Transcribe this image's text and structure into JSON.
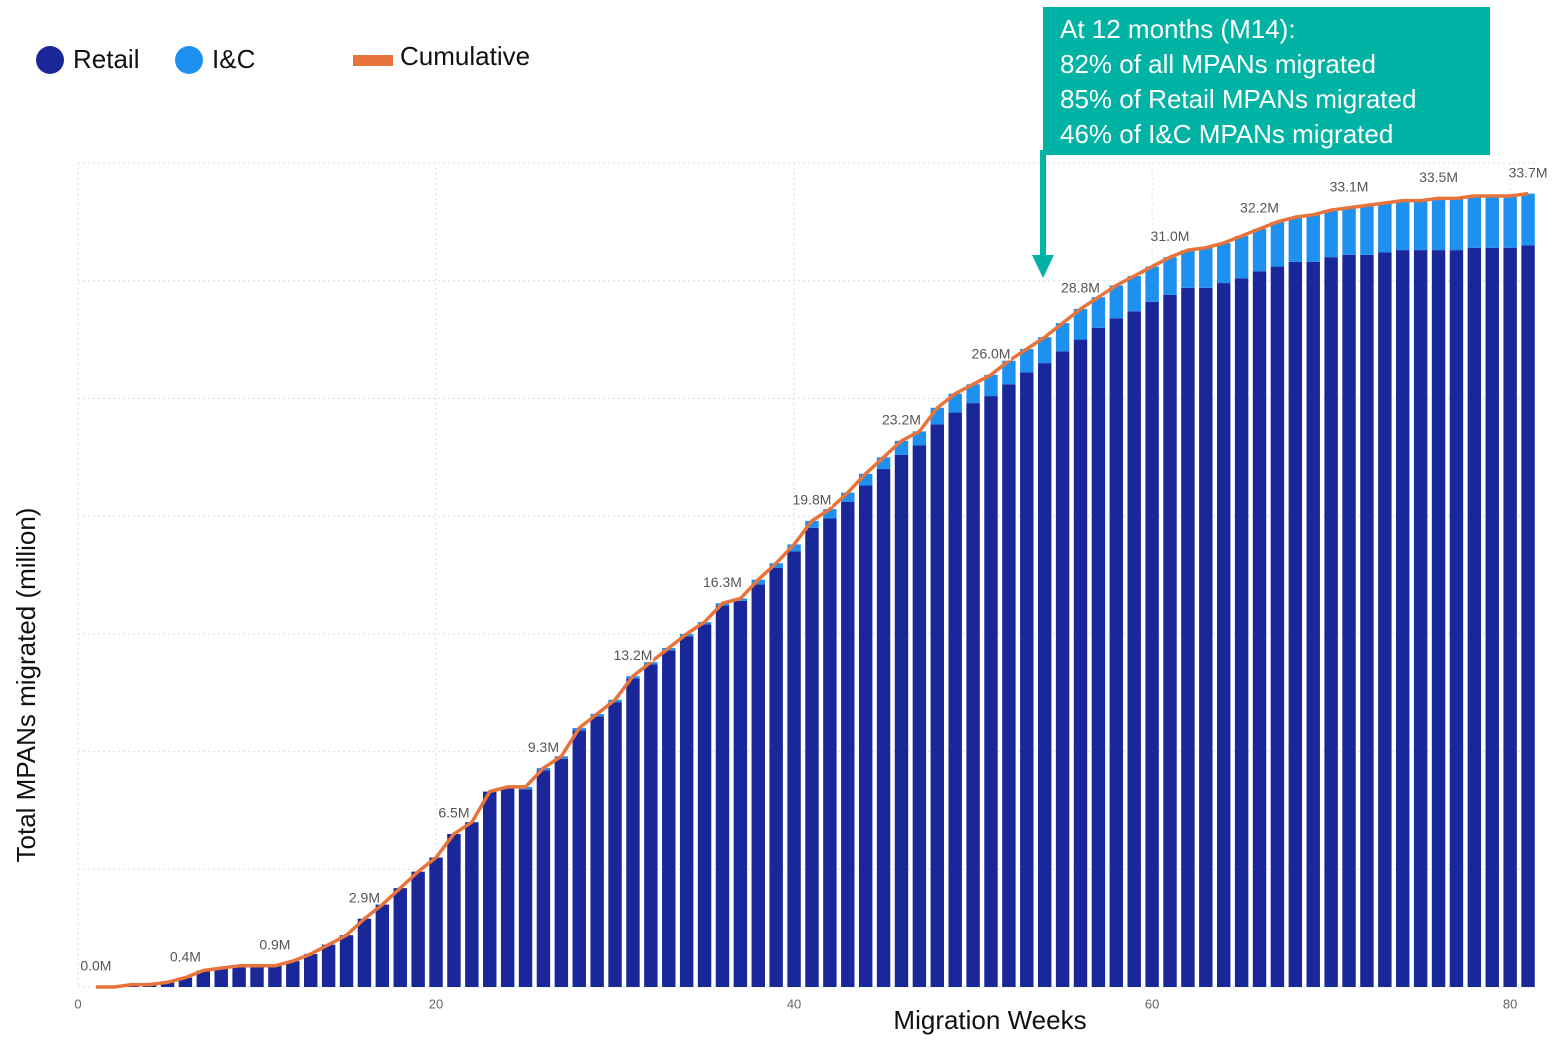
{
  "chart_data": {
    "type": "bar+line",
    "x_label": "Migration Weeks",
    "y_label": "Total MPANs migrated (million)",
    "annotation": [
      "At 12 months (M14):",
      "82% of all MPANs migrated",
      "85% of Retail MPANs migrated",
      "46% of I&C MPANs migrated"
    ],
    "annotation_color": "#00b3a4",
    "x": [
      1,
      2,
      3,
      4,
      5,
      6,
      7,
      8,
      9,
      10,
      11,
      12,
      13,
      14,
      15,
      16,
      17,
      18,
      19,
      20,
      21,
      22,
      23,
      24,
      25,
      26,
      27,
      28,
      29,
      30,
      31,
      32,
      33,
      34,
      35,
      36,
      37,
      38,
      39,
      40,
      41,
      42,
      43,
      44,
      45,
      46,
      47,
      48,
      49,
      50,
      51,
      52,
      53,
      54,
      55,
      56,
      57,
      58,
      59,
      60,
      61,
      62,
      63,
      64,
      65,
      66,
      67,
      68,
      69,
      70,
      71,
      72,
      73,
      74,
      75,
      76,
      77,
      78,
      79,
      80,
      81
    ],
    "series": [
      {
        "name": "Retail",
        "color": "#1a2799",
        "values": [
          0.0,
          0.0,
          0.1,
          0.1,
          0.2,
          0.4,
          0.7,
          0.8,
          0.9,
          0.9,
          0.9,
          1.1,
          1.4,
          1.8,
          2.2,
          2.9,
          3.5,
          4.2,
          4.9,
          5.5,
          6.5,
          7.0,
          8.3,
          8.5,
          8.4,
          9.2,
          9.7,
          10.9,
          11.5,
          12.1,
          13.1,
          13.7,
          14.3,
          14.9,
          15.4,
          16.2,
          16.4,
          17.1,
          17.8,
          18.5,
          19.5,
          19.9,
          20.6,
          21.3,
          22.0,
          22.6,
          23.0,
          23.9,
          24.4,
          24.8,
          25.1,
          25.6,
          26.1,
          26.5,
          27.0,
          27.5,
          28.0,
          28.4,
          28.7,
          29.1,
          29.4,
          29.7,
          29.7,
          29.9,
          30.1,
          30.4,
          30.6,
          30.8,
          30.8,
          31.0,
          31.1,
          31.1,
          31.2,
          31.3,
          31.3,
          31.3,
          31.3,
          31.4,
          31.4,
          31.4,
          31.5
        ]
      },
      {
        "name": "I&C",
        "color": "#1e90f0",
        "values": [
          0,
          0,
          0,
          0,
          0,
          0,
          0,
          0,
          0,
          0,
          0,
          0,
          0,
          0,
          0,
          0,
          0,
          0,
          0,
          0,
          0,
          0,
          0,
          0,
          0.1,
          0.1,
          0.1,
          0.1,
          0.1,
          0.1,
          0.1,
          0.1,
          0.1,
          0.1,
          0.1,
          0.1,
          0.1,
          0.2,
          0.2,
          0.3,
          0.3,
          0.4,
          0.4,
          0.5,
          0.5,
          0.6,
          0.6,
          0.7,
          0.8,
          0.8,
          0.9,
          1.0,
          1.0,
          1.1,
          1.2,
          1.3,
          1.3,
          1.4,
          1.5,
          1.5,
          1.6,
          1.6,
          1.7,
          1.7,
          1.8,
          1.8,
          1.9,
          1.9,
          2.0,
          2.0,
          2.0,
          2.1,
          2.1,
          2.1,
          2.1,
          2.2,
          2.2,
          2.2,
          2.2,
          2.2,
          2.2
        ]
      },
      {
        "name": "Cumulative",
        "color": "#e8743b",
        "values": [
          0.0,
          0.0,
          0.1,
          0.1,
          0.2,
          0.4,
          0.7,
          0.8,
          0.9,
          0.9,
          0.9,
          1.1,
          1.4,
          1.8,
          2.2,
          2.9,
          3.5,
          4.2,
          4.9,
          5.5,
          6.5,
          7.0,
          8.3,
          8.5,
          8.5,
          9.3,
          9.8,
          11.0,
          11.6,
          12.2,
          13.2,
          13.8,
          14.4,
          15.0,
          15.5,
          16.3,
          16.5,
          17.3,
          18.0,
          18.8,
          19.8,
          20.3,
          21.0,
          21.8,
          22.5,
          23.2,
          23.6,
          24.6,
          25.2,
          25.6,
          26.0,
          26.6,
          27.1,
          27.6,
          28.2,
          28.8,
          29.3,
          29.8,
          30.2,
          30.6,
          31.0,
          31.3,
          31.4,
          31.6,
          31.9,
          32.2,
          32.5,
          32.7,
          32.8,
          33.0,
          33.1,
          33.2,
          33.3,
          33.4,
          33.4,
          33.5,
          33.5,
          33.6,
          33.6,
          33.6,
          33.7
        ],
        "value_labels": [
          "0.0M",
          null,
          null,
          null,
          null,
          "0.4M",
          null,
          null,
          null,
          null,
          "0.9M",
          null,
          null,
          null,
          null,
          "2.9M",
          null,
          null,
          null,
          null,
          "6.5M",
          null,
          null,
          null,
          null,
          "9.3M",
          null,
          null,
          null,
          null,
          "13.2M",
          null,
          null,
          null,
          null,
          "16.3M",
          null,
          null,
          null,
          null,
          "19.8M",
          null,
          null,
          null,
          null,
          "23.2M",
          null,
          null,
          null,
          null,
          "26.0M",
          null,
          null,
          null,
          null,
          "28.8M",
          null,
          null,
          null,
          null,
          "31.0M",
          null,
          null,
          null,
          null,
          "32.2M",
          null,
          null,
          null,
          null,
          "33.1M",
          null,
          null,
          null,
          null,
          "33.5M",
          null,
          null,
          null,
          null,
          "33.7M"
        ]
      }
    ],
    "xlim": [
      0,
      81.5
    ],
    "xticks": [
      0,
      20,
      40,
      60,
      80
    ],
    "ylim": [
      0,
      35
    ],
    "yticks": [
      0,
      5,
      10,
      15,
      20,
      25,
      30,
      35
    ],
    "grid": true
  }
}
